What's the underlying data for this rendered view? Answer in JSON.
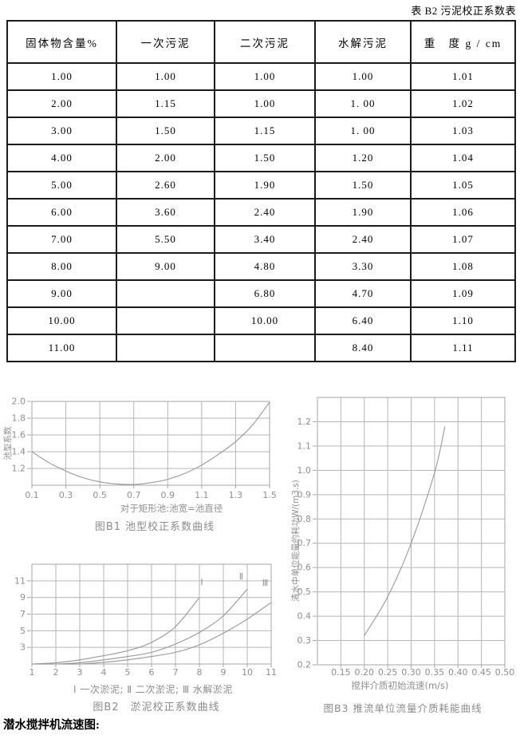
{
  "page": {
    "title": "表 B2 污泥校正系数表",
    "footer": "潜水搅拌机流速图:"
  },
  "colors": {
    "chart_ink": "#989898",
    "chart_text": "#8f8f8f",
    "grid": "#b6b6b6",
    "border": "#a5a5a5",
    "table_border": "#1b1b1b",
    "text": "#000000"
  },
  "table": {
    "headers": [
      "固体物含量%",
      "一次污泥",
      "二次污泥",
      "水解污泥",
      "重　度 g / cm"
    ],
    "rows": [
      [
        "1.00",
        "1.00",
        "1.00",
        "1.00",
        "1.01"
      ],
      [
        "2.00",
        "1.15",
        "1.00",
        "1. 00",
        "1.02"
      ],
      [
        "3.00",
        "1.50",
        "1.15",
        "1. 00",
        "1.03"
      ],
      [
        "4.00",
        "2.00",
        "1.50",
        "1.20",
        "1.04"
      ],
      [
        "5.00",
        "2.60",
        "1.90",
        "1.50",
        "1.05"
      ],
      [
        "6.00",
        "3.60",
        "2.40",
        "1.90",
        "1.06"
      ],
      [
        "7.00",
        "5.50",
        "3.40",
        "2.40",
        "1.07"
      ],
      [
        "8.00",
        "9.00",
        "4.80",
        "3.30",
        "1.08"
      ],
      [
        "9.00",
        "",
        "6.80",
        "4.70",
        "1.09"
      ],
      [
        "10.00",
        "",
        "10.00",
        "6.40",
        "1.10"
      ],
      [
        "11.00",
        "",
        "",
        "8.40",
        "1.11"
      ]
    ]
  },
  "chart_data": [
    {
      "id": "B1",
      "type": "line",
      "title": "图B1 池型校正系数曲线",
      "xlabel": "对于矩形池:池宽=池直径",
      "ylabel": "池型系数",
      "xlim": [
        0.1,
        1.5
      ],
      "ylim": [
        1.0,
        2.0
      ],
      "grid": true,
      "xticks": [
        {
          "v": 0.1,
          "t": "0.1"
        },
        {
          "v": 0.3,
          "t": "0.3"
        },
        {
          "v": 0.5,
          "t": "0.5"
        },
        {
          "v": 0.7,
          "t": "0.7"
        },
        {
          "v": 0.9,
          "t": "0.9"
        },
        {
          "v": 1.1,
          "t": "1.1"
        },
        {
          "v": 1.3,
          "t": "1.3"
        },
        {
          "v": 1.5,
          "t": "1.5"
        }
      ],
      "yticks": [
        {
          "v": 1.2,
          "t": "1.2"
        },
        {
          "v": 1.4,
          "t": "1.4"
        },
        {
          "v": 1.6,
          "t": "1.6"
        },
        {
          "v": 1.8,
          "t": "1.8"
        },
        {
          "v": 2.0,
          "t": "2.0"
        }
      ],
      "xgrid": [
        0.3,
        0.5,
        0.7,
        0.9,
        1.1,
        1.3
      ],
      "ygrid": [
        1.2,
        1.4,
        1.6,
        1.8
      ],
      "series": [
        {
          "name": "池型校正系数",
          "points": [
            [
              0.1,
              1.4
            ],
            [
              0.2,
              1.27
            ],
            [
              0.3,
              1.17
            ],
            [
              0.4,
              1.09
            ],
            [
              0.5,
              1.04
            ],
            [
              0.6,
              1.015
            ],
            [
              0.7,
              1.01
            ],
            [
              0.8,
              1.03
            ],
            [
              0.9,
              1.07
            ],
            [
              1.0,
              1.14
            ],
            [
              1.1,
              1.24
            ],
            [
              1.2,
              1.37
            ],
            [
              1.3,
              1.52
            ],
            [
              1.4,
              1.72
            ],
            [
              1.5,
              1.99
            ]
          ]
        }
      ],
      "annotations": []
    },
    {
      "id": "B2",
      "type": "line",
      "title": "图B2　淤泥校正系数曲线",
      "legend": "Ⅰ 一次淤泥; Ⅱ 二次淤泥; Ⅲ 水解淤泥",
      "xlabel": "",
      "ylabel": "",
      "xlim": [
        1,
        11
      ],
      "ylim": [
        1,
        13
      ],
      "grid": true,
      "xticks": [
        {
          "v": 1,
          "t": "1"
        },
        {
          "v": 2,
          "t": "2"
        },
        {
          "v": 3,
          "t": "3"
        },
        {
          "v": 4,
          "t": "4"
        },
        {
          "v": 5,
          "t": "5"
        },
        {
          "v": 6,
          "t": "6"
        },
        {
          "v": 7,
          "t": "7"
        },
        {
          "v": 8,
          "t": "8"
        },
        {
          "v": 9,
          "t": "9"
        },
        {
          "v": 10,
          "t": "10"
        },
        {
          "v": 11,
          "t": "11"
        }
      ],
      "yticks": [
        {
          "v": 3,
          "t": "3"
        },
        {
          "v": 5,
          "t": "5"
        },
        {
          "v": 7,
          "t": "7"
        },
        {
          "v": 9,
          "t": "9"
        },
        {
          "v": 11,
          "t": "11"
        }
      ],
      "xgrid": [
        2,
        3,
        4,
        5,
        6,
        7,
        8,
        9,
        10
      ],
      "ygrid": [
        3,
        5,
        7,
        9,
        11
      ],
      "series": [
        {
          "name": "Ⅰ 一次淤泥",
          "points": [
            [
              1,
              1.0
            ],
            [
              2,
              1.15
            ],
            [
              3,
              1.5
            ],
            [
              4,
              2.0
            ],
            [
              5,
              2.6
            ],
            [
              6,
              3.6
            ],
            [
              7,
              5.5
            ],
            [
              8,
              9.0
            ]
          ]
        },
        {
          "name": "Ⅱ 二次淤泥",
          "points": [
            [
              1,
              1.0
            ],
            [
              2,
              1.0
            ],
            [
              3,
              1.15
            ],
            [
              4,
              1.5
            ],
            [
              5,
              1.9
            ],
            [
              6,
              2.4
            ],
            [
              7,
              3.4
            ],
            [
              8,
              4.8
            ],
            [
              9,
              6.8
            ],
            [
              10,
              10.0
            ]
          ]
        },
        {
          "name": "Ⅲ 水解淤泥",
          "points": [
            [
              1,
              1.0
            ],
            [
              2,
              1.0
            ],
            [
              3,
              1.0
            ],
            [
              4,
              1.2
            ],
            [
              5,
              1.5
            ],
            [
              6,
              1.9
            ],
            [
              7,
              2.4
            ],
            [
              8,
              3.3
            ],
            [
              9,
              4.7
            ],
            [
              10,
              6.4
            ],
            [
              11,
              8.4
            ]
          ]
        }
      ],
      "annotations": [
        {
          "x": 8.1,
          "y": 10.5,
          "text": "Ⅰ"
        },
        {
          "x": 9.75,
          "y": 11.2,
          "text": "Ⅱ"
        },
        {
          "x": 10.75,
          "y": 10.4,
          "text": "Ⅲ"
        }
      ]
    },
    {
      "id": "B3",
      "type": "line",
      "title": "图B3 推流单位流量介质耗能曲线",
      "xlabel": "搅拌介质初始流速(m/s)",
      "ylabel": "清水中单位能量的耗功W/(m3.s)",
      "xlim": [
        0.1,
        0.5
      ],
      "ylim": [
        0.2,
        1.3
      ],
      "grid": true,
      "xticks": [
        {
          "v": 0.15,
          "t": "0.15"
        },
        {
          "v": 0.2,
          "t": "0.20"
        },
        {
          "v": 0.25,
          "t": "0.25"
        },
        {
          "v": 0.3,
          "t": "0.30"
        },
        {
          "v": 0.35,
          "t": "0.35"
        },
        {
          "v": 0.4,
          "t": "0.40"
        },
        {
          "v": 0.45,
          "t": "0.45"
        },
        {
          "v": 0.5,
          "t": "0.50"
        }
      ],
      "yticks": [
        {
          "v": 0.2,
          "t": "0.2"
        },
        {
          "v": 0.3,
          "t": "0.3"
        },
        {
          "v": 0.4,
          "t": "0.4"
        },
        {
          "v": 0.5,
          "t": "0.5"
        },
        {
          "v": 0.6,
          "t": "0.6"
        },
        {
          "v": 0.7,
          "t": "0.7"
        },
        {
          "v": 0.8,
          "t": "0.8"
        },
        {
          "v": 0.9,
          "t": "0.9"
        },
        {
          "v": 1.0,
          "t": "1.0"
        },
        {
          "v": 1.1,
          "t": "1.1"
        },
        {
          "v": 1.2,
          "t": "1.2"
        }
      ],
      "xgrid": [
        0.15,
        0.2,
        0.25,
        0.3,
        0.35,
        0.4,
        0.45
      ],
      "ygrid": [
        0.3,
        0.4,
        0.5,
        0.6,
        0.7,
        0.8,
        0.9,
        1.0,
        1.1,
        1.2
      ],
      "series": [
        {
          "name": "推流单位流量介质耗能",
          "points": [
            [
              0.2,
              0.32
            ],
            [
              0.25,
              0.48
            ],
            [
              0.3,
              0.7
            ],
            [
              0.35,
              0.99
            ],
            [
              0.372,
              1.18
            ]
          ]
        }
      ],
      "annotations": []
    }
  ]
}
